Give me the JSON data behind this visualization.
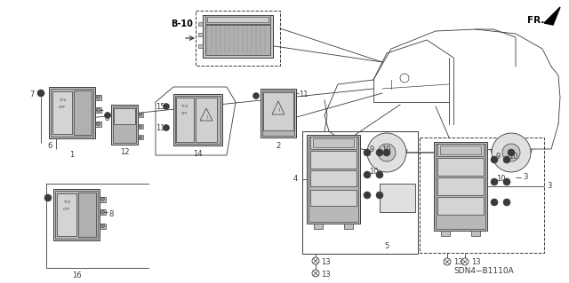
{
  "bg_color": "#ffffff",
  "diagram_ref": "SDN4−B1110A",
  "fr_label": "FR.",
  "b10_label": "B-10",
  "figsize": [
    6.4,
    3.19
  ],
  "dpi": 100,
  "gray": "#3a3a3a",
  "lgray": "#888888",
  "dgray": "#555555"
}
